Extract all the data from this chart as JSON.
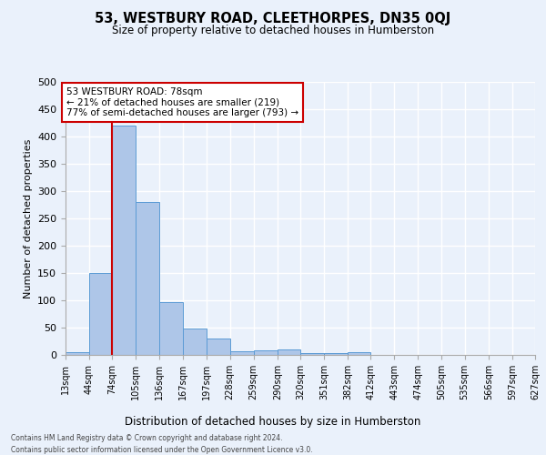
{
  "title": "53, WESTBURY ROAD, CLEETHORPES, DN35 0QJ",
  "subtitle": "Size of property relative to detached houses in Humberston",
  "xlabel": "Distribution of detached houses by size in Humberston",
  "ylabel": "Number of detached properties",
  "footnote1": "Contains HM Land Registry data © Crown copyright and database right 2024.",
  "footnote2": "Contains public sector information licensed under the Open Government Licence v3.0.",
  "bin_edges": [
    13,
    44,
    74,
    105,
    136,
    167,
    197,
    228,
    259,
    290,
    320,
    351,
    382,
    412,
    443,
    474,
    505,
    535,
    566,
    597,
    627
  ],
  "bin_labels": [
    "13sqm",
    "44sqm",
    "74sqm",
    "105sqm",
    "136sqm",
    "167sqm",
    "197sqm",
    "228sqm",
    "259sqm",
    "290sqm",
    "320sqm",
    "351sqm",
    "382sqm",
    "412sqm",
    "443sqm",
    "474sqm",
    "505sqm",
    "535sqm",
    "566sqm",
    "597sqm",
    "627sqm"
  ],
  "counts": [
    5,
    150,
    420,
    280,
    97,
    49,
    30,
    6,
    8,
    10,
    4,
    4,
    5,
    0,
    0,
    0,
    0,
    0,
    0,
    0
  ],
  "bar_color": "#aec6e8",
  "bar_edge_color": "#5b9bd5",
  "background_color": "#eaf1fb",
  "grid_color": "#ffffff",
  "vline_x": 74,
  "vline_color": "#cc0000",
  "annotation_line1": "53 WESTBURY ROAD: 78sqm",
  "annotation_line2": "← 21% of detached houses are smaller (219)",
  "annotation_line3": "77% of semi-detached houses are larger (793) →",
  "annotation_box_color": "#ffffff",
  "annotation_box_edge": "#cc0000",
  "ylim": [
    0,
    500
  ],
  "yticks": [
    0,
    50,
    100,
    150,
    200,
    250,
    300,
    350,
    400,
    450,
    500
  ]
}
